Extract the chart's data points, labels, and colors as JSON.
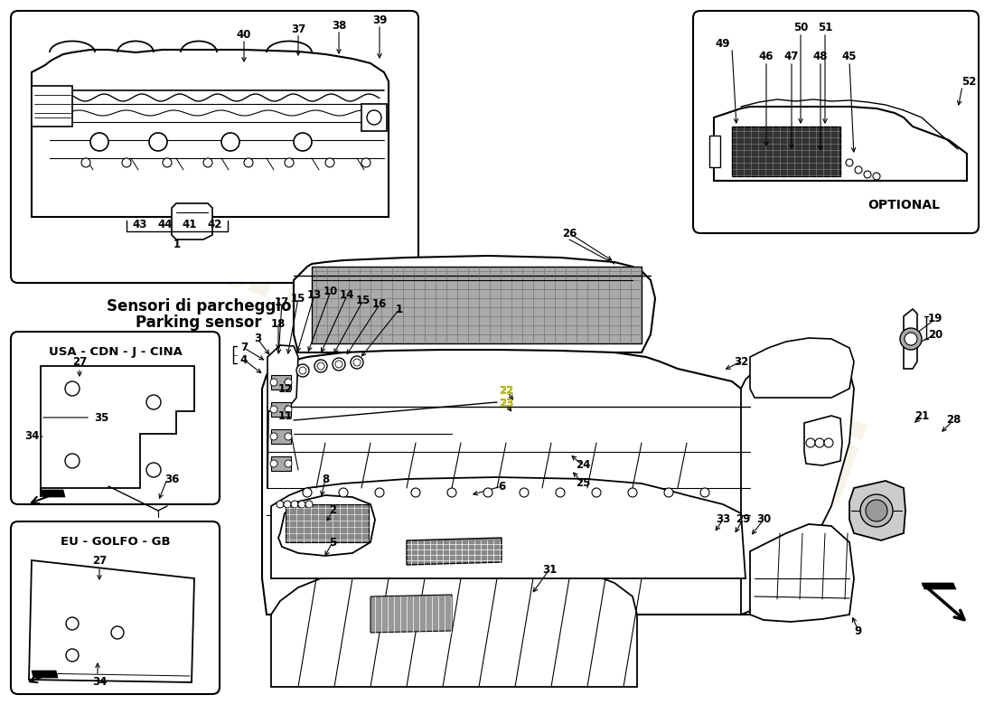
{
  "bg_color": "#ffffff",
  "line_color": "#000000",
  "watermark1": "Euroricambi",
  "watermark2": "passion1985",
  "inset1_title_line1": "Sensori di parcheggio",
  "inset1_title_line2": "Parking sensor",
  "inset_usa_title": "USA - CDN - J - CINA",
  "inset_eu_title": "EU - GOLFO - GB",
  "optional_label": "OPTIONAL",
  "yellow_color": "#cccc00",
  "gray_mesh": "#888888",
  "dark_mesh": "#555555",
  "light_gray": "#cccccc"
}
